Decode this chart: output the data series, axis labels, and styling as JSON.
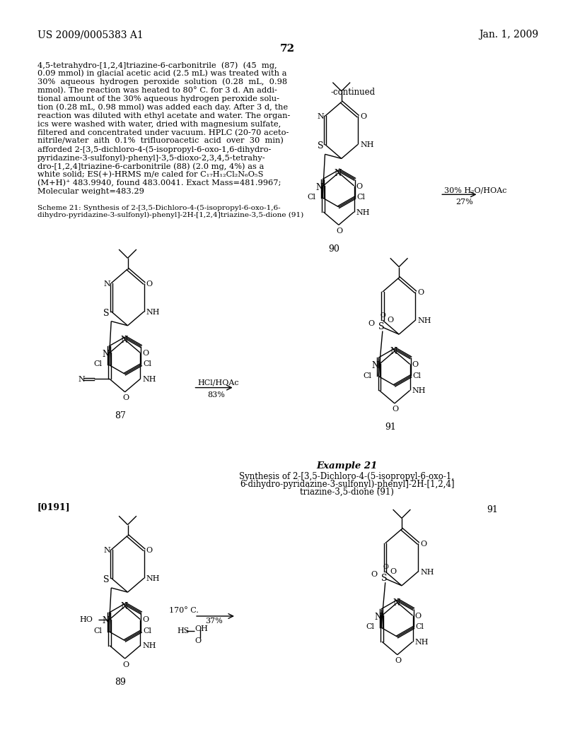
{
  "page_number": "72",
  "patent_number": "US 2009/0005383 A1",
  "date": "Jan. 1, 2009",
  "background_color": "#ffffff",
  "text_color": "#000000",
  "body_text": [
    "4,5-tetrahydro-[1,2,4]triazine-6-carbonitrile  (87)  (45  mg,",
    "0.09 mmol) in glacial acetic acid (2.5 mL) was treated with a",
    "30%  aqueous  hydrogen  peroxide  solution  (0.28  mL,  0.98",
    "mmol). The reaction was heated to 80° C. for 3 d. An addi-",
    "tional amount of the 30% aqueous hydrogen peroxide solu-",
    "tion (0.28 mL, 0.98 mmol) was added each day. After 3 d, the",
    "reaction was diluted with ethyl acetate and water. The organ-",
    "ics were washed with water, dried with magnesium sulfate,",
    "filtered and concentrated under vacuum. HPLC (20-70 aceto-",
    "nitrile/water  aith  0.1%  trifluoroacetic  acid  over  30  min)",
    "afforded 2-[3,5-dichloro-4-(5-isopropyl-6-oxo-1,6-dihydro-",
    "pyridazine-3-sulfonyl)-phenyl]-3,5-dioxo-2,3,4,5-tetrahy-",
    "dro-[1,2,4]triazine-6-carbonitrile (88) (2.0 mg, 4%) as a",
    "white solid; ES(+)-HRMS m/e caled for C₁₇H₁₂Cl₂N₆O₅S",
    "(M+H)⁺ 483.9940, found 483.0041. Exact Mass=481.9967;",
    "Molecular weight=483.29"
  ],
  "scheme_text_line1": "Scheme 21: Synthesis of 2-[3,5-Dichloro-4-(5-isopropyl-6-oxo-1,6-",
  "scheme_text_line2": "dihydro-pyridazine-3-sulfonyl)-phenyl]-2H-[1,2,4]triazine-3,5-dione (91)",
  "example21_title": "Example 21",
  "example21_sub1": "Synthesis of 2-[3,5-Dichloro-4-(5-isopropyl-6-oxo-1,",
  "example21_sub2": "6-dihydro-pyridazine-3-sulfonyl)-phenyl]-2H-[1,2,4]",
  "example21_sub3": "triazine-3,5-dione (91)",
  "paragraph_0191": "[0191]",
  "continued_label": "-continued",
  "label_90": "90",
  "label_87": "87",
  "label_91": "91",
  "label_89": "89",
  "label_91b": "91",
  "rxn1_line1": "30% H₂O/HOAc",
  "rxn1_line2": "27%",
  "rxn2_line1": "HCl/HOAc",
  "rxn2_line2": "83%",
  "rxn3_line1": "170° C.",
  "rxn3_line2": "37%"
}
